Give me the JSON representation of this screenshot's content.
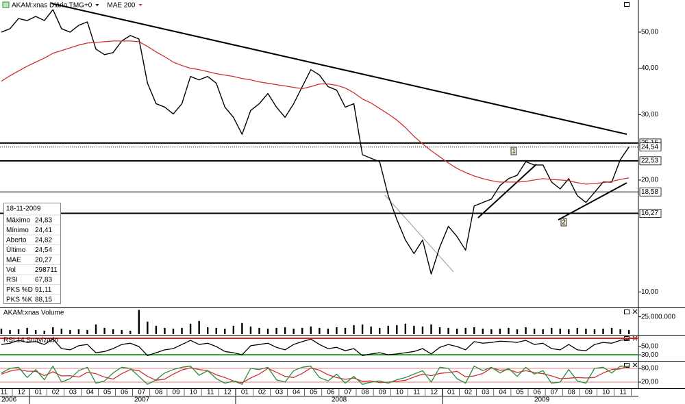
{
  "chart_data": [
    {
      "type": "line",
      "log_scale": true,
      "categories": [
        "11",
        null,
        "12",
        null,
        "01",
        null,
        "02",
        null,
        "03",
        null,
        "04",
        null,
        "05",
        null,
        "06",
        null,
        "07",
        null,
        "08",
        null,
        "09",
        null,
        "10",
        null,
        "11",
        null,
        "12",
        null,
        "01",
        null,
        "02",
        null,
        "03",
        null,
        "04",
        null,
        "05",
        null,
        "06",
        null,
        "07",
        null,
        "08",
        null,
        "09",
        null,
        "10",
        null,
        "11",
        null,
        "12",
        null,
        "01",
        null,
        "02",
        null,
        "03",
        null,
        "04",
        null,
        "05",
        null,
        "06",
        null,
        "07",
        null,
        "08",
        null,
        "09",
        null,
        "10",
        null,
        "11",
        null
      ],
      "x_groups": [
        "2006",
        "2007",
        "2008",
        "2009"
      ],
      "series": [
        {
          "name": "AKAM:xnas Diário TMG+0",
          "color": "#000000",
          "values": [
            50.0,
            51.07,
            54.41,
            53.72,
            55.1,
            53.72,
            57.48,
            51.07,
            50.0,
            52.16,
            53.27,
            44.99,
            43.49,
            44.05,
            47.33,
            48.96,
            47.93,
            36.43,
            32.09,
            31.42,
            30.12,
            32.09,
            37.99,
            37.2,
            37.99,
            36.43,
            31.42,
            29.49,
            26.54,
            30.77,
            32.09,
            34.19,
            31.42,
            29.49,
            32.09,
            35.67,
            39.64,
            38.33,
            35.67,
            34.92,
            31.42,
            32.09,
            23.39,
            22.89,
            22.41,
            18.15,
            15.66,
            13.79,
            12.68,
            13.79,
            11.17,
            13.22,
            15.01,
            14.09,
            12.95,
            17.03,
            17.4,
            17.77,
            19.33,
            20.17,
            20.6,
            22.41,
            21.95,
            21.95,
            19.75,
            18.93,
            20.17,
            18.15,
            17.4,
            18.53,
            19.75,
            19.75,
            22.7,
            24.54
          ]
        },
        {
          "name": "MAE 200",
          "color": "#d03030",
          "values": [
            36.89,
            38.16,
            39.31,
            40.48,
            41.52,
            42.58,
            43.87,
            44.61,
            45.37,
            46.15,
            46.73,
            46.93,
            47.13,
            47.33,
            47.33,
            47.33,
            47.13,
            45.76,
            44.24,
            42.95,
            41.52,
            40.66,
            39.97,
            39.64,
            39.14,
            38.65,
            38.32,
            38.0,
            37.52,
            37.2,
            36.73,
            36.43,
            36.12,
            35.82,
            35.51,
            35.22,
            35.67,
            36.27,
            36.27,
            35.97,
            35.37,
            34.34,
            33.05,
            32.23,
            31.16,
            30.12,
            29.0,
            27.69,
            26.21,
            25.02,
            23.98,
            23.09,
            22.22,
            21.49,
            20.95,
            20.51,
            20.17,
            19.92,
            19.75,
            19.75,
            19.75,
            19.83,
            20.0,
            20.17,
            20.08,
            20.0,
            19.92,
            19.67,
            19.5,
            19.58,
            19.67,
            19.83,
            20.08,
            20.27
          ]
        }
      ],
      "ylim": [
        9.12,
        60.5
      ],
      "yticks": [
        {
          "value": 10,
          "label": "10,00"
        },
        {
          "value": 20,
          "label": "20,00"
        },
        {
          "value": 30,
          "label": "30,00"
        },
        {
          "value": 40,
          "label": "40,00"
        },
        {
          "value": 50,
          "label": "50,00"
        }
      ],
      "levels": [
        {
          "value": 25.15,
          "label": "25,15",
          "style": "thick"
        },
        {
          "value": 24.54,
          "label": "24,54",
          "style": "dotted"
        },
        {
          "value": 22.53,
          "label": "22,53",
          "style": "thick"
        },
        {
          "value": 18.58,
          "label": "18,58",
          "style": "thin"
        },
        {
          "value": 16.27,
          "label": "16,27",
          "style": "thick"
        }
      ],
      "markers": [
        "1",
        "2"
      ]
    },
    {
      "type": "bar",
      "title": "AKAM:xnas Volume",
      "color": "#000000",
      "values": [
        8000000,
        6000000,
        7000000,
        9000000,
        6000000,
        5000000,
        10000000,
        8000000,
        6000000,
        7000000,
        6000000,
        14000000,
        9000000,
        7000000,
        6000000,
        5000000,
        35000000,
        18000000,
        12000000,
        9000000,
        8000000,
        9000000,
        15000000,
        19000000,
        10000000,
        9000000,
        8000000,
        12000000,
        16000000,
        11000000,
        9000000,
        8000000,
        9000000,
        10000000,
        8000000,
        9000000,
        11000000,
        9000000,
        8000000,
        10000000,
        9000000,
        13000000,
        14000000,
        11000000,
        9000000,
        12000000,
        13000000,
        15000000,
        12000000,
        11000000,
        14000000,
        10000000,
        9000000,
        8000000,
        9000000,
        10000000,
        8000000,
        7000000,
        8000000,
        9000000,
        7000000,
        10000000,
        8000000,
        7000000,
        9000000,
        8000000,
        7000000,
        9000000,
        8000000,
        7000000,
        8000000,
        9000000,
        7000000,
        6000000
      ],
      "ylim": [
        0,
        36500000
      ],
      "yticks": [
        {
          "value": 25000000,
          "label": "25.000.000"
        }
      ]
    },
    {
      "type": "line",
      "title": "RSI 14 Suavizado",
      "series": [
        {
          "color": "#000000",
          "values": [
            55,
            58,
            65,
            60,
            62,
            55,
            68,
            45,
            42,
            52,
            55,
            35,
            38,
            45,
            55,
            58,
            50,
            28,
            35,
            42,
            45,
            55,
            65,
            55,
            58,
            50,
            38,
            35,
            30,
            52,
            55,
            58,
            48,
            42,
            55,
            62,
            68,
            55,
            45,
            48,
            40,
            45,
            28,
            32,
            35,
            30,
            32,
            35,
            38,
            45,
            32,
            48,
            55,
            50,
            42,
            62,
            58,
            60,
            63,
            62,
            60,
            65,
            55,
            58,
            45,
            42,
            55,
            42,
            40,
            55,
            60,
            58,
            65,
            67.83
          ]
        }
      ],
      "ylim": [
        17,
        75
      ],
      "yticks": [
        {
          "value": 50,
          "label": "50,00"
        },
        {
          "value": 30,
          "label": "30,00"
        }
      ],
      "levels": [
        {
          "value": 70,
          "color": "#e02020",
          "style": "thick"
        },
        {
          "value": 30,
          "color": "#2a9a2a",
          "style": "thick"
        }
      ]
    },
    {
      "type": "line",
      "series": [
        {
          "color": "#d03030",
          "values": [
            55,
            68,
            75,
            68,
            67,
            48,
            65,
            47,
            48,
            42,
            63,
            57,
            42,
            33,
            57,
            75,
            70,
            45,
            28,
            33,
            55,
            73,
            83,
            75,
            70,
            52,
            40,
            25,
            17,
            38,
            55,
            80,
            63,
            45,
            40,
            58,
            82,
            72,
            52,
            40,
            32,
            38,
            23,
            25,
            18,
            20,
            23,
            28,
            42,
            55,
            48,
            58,
            62,
            67,
            43,
            47,
            58,
            82,
            72,
            75,
            62,
            70,
            62,
            57,
            47,
            35,
            37,
            40,
            38,
            40,
            60,
            75,
            78,
            91.11
          ]
        },
        {
          "color": "#2a8a3a",
          "values": [
            60,
            80,
            85,
            40,
            75,
            30,
            90,
            20,
            35,
            70,
            85,
            15,
            25,
            60,
            85,
            80,
            45,
            10,
            30,
            60,
            75,
            85,
            90,
            50,
            70,
            35,
            15,
            25,
            10,
            80,
            75,
            85,
            30,
            20,
            70,
            85,
            90,
            40,
            25,
            55,
            15,
            45,
            10,
            20,
            25,
            15,
            30,
            40,
            55,
            70,
            20,
            85,
            80,
            35,
            15,
            90,
            70,
            85,
            60,
            80,
            45,
            85,
            55,
            70,
            15,
            20,
            75,
            25,
            15,
            80,
            85,
            60,
            90,
            88.15
          ]
        }
      ],
      "ylim": [
        -4,
        107
      ],
      "yticks": [
        {
          "value": 80,
          "label": "80,00"
        },
        {
          "value": 20,
          "label": "20,00"
        }
      ],
      "levels": [
        {
          "value": 80,
          "color": "#e08080",
          "style": "thin"
        },
        {
          "value": 20,
          "color": "#e08080",
          "style": "thin"
        }
      ]
    }
  ],
  "info_box": {
    "date": "18-11-2009",
    "rows": [
      {
        "label": "Máximo",
        "value": "24,83",
        "color": "#000000"
      },
      {
        "label": "Mínimo",
        "value": "24,41",
        "color": "#000000"
      },
      {
        "label": "Aberto",
        "value": "24,82",
        "color": "#000000"
      },
      {
        "label": "Último",
        "value": "24,54",
        "color": "#000000"
      },
      {
        "label": "MAE",
        "value": "20,27",
        "color": "#d03030"
      },
      {
        "label": "Vol",
        "value": "298711",
        "color": "#000000"
      },
      {
        "label": "RSI",
        "value": "67,83",
        "color": "#000000"
      },
      {
        "label": "PKS %D",
        "value": "91,11",
        "color": "#d03030"
      },
      {
        "label": "PKS %K",
        "value": "88,15",
        "color": "#2a8a3a"
      }
    ]
  }
}
